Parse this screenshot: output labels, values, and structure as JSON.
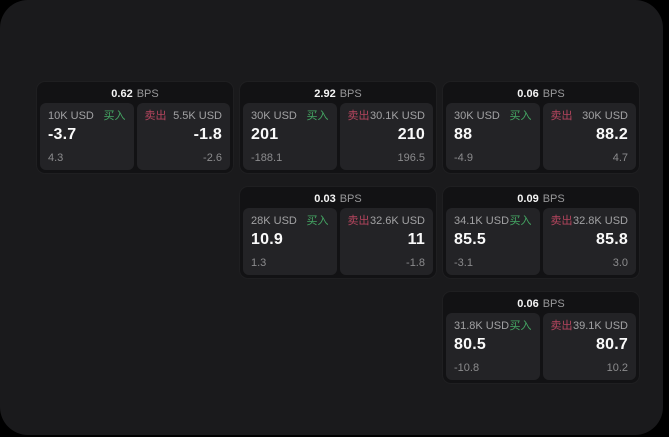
{
  "labels": {
    "bps_unit": "BPS",
    "buy": "买入",
    "sell": "卖出"
  },
  "colors": {
    "page_background": "#000000",
    "panel_background": "#1a1a1c",
    "card_background": "#121214",
    "tile_background": "#232326",
    "buy_green": "#45a864",
    "sell_red": "#b5455e",
    "text_primary": "#f5f5f5",
    "text_secondary": "#9a9a9a"
  },
  "cards": [
    {
      "bps": "0.62",
      "buy": {
        "amount": "10K USD",
        "price": "-3.7",
        "sub": "4.3"
      },
      "sell": {
        "amount": "5.5K USD",
        "price": "-1.8",
        "sub": "-2.6"
      }
    },
    {
      "bps": "2.92",
      "buy": {
        "amount": "30K USD",
        "price": "201",
        "sub": "-188.1"
      },
      "sell": {
        "amount": "30.1K USD",
        "price": "210",
        "sub": "196.5"
      }
    },
    {
      "bps": "0.06",
      "buy": {
        "amount": "30K USD",
        "price": "88",
        "sub": "-4.9"
      },
      "sell": {
        "amount": "30K USD",
        "price": "88.2",
        "sub": "4.7"
      }
    },
    {
      "bps": "0.03",
      "buy": {
        "amount": "28K USD",
        "price": "10.9",
        "sub": "1.3"
      },
      "sell": {
        "amount": "32.6K USD",
        "price": "11",
        "sub": "-1.8"
      }
    },
    {
      "bps": "0.09",
      "buy": {
        "amount": "34.1K USD",
        "price": "85.5",
        "sub": "-3.1"
      },
      "sell": {
        "amount": "32.8K USD",
        "price": "85.8",
        "sub": "3.0"
      }
    },
    {
      "bps": "0.06",
      "buy": {
        "amount": "31.8K USD",
        "price": "80.5",
        "sub": "-10.8"
      },
      "sell": {
        "amount": "39.1K USD",
        "price": "80.7",
        "sub": "10.2"
      }
    }
  ]
}
